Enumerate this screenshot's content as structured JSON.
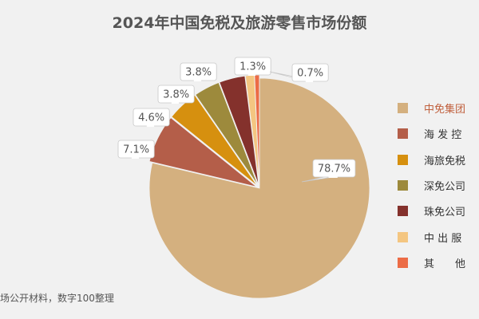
{
  "title": "2024年中国免税及旅游零售市场份额",
  "source": "场公开材料，数字100整理",
  "chart_data": {
    "type": "pie",
    "title": "2024年中国免税及旅游零售市场份额",
    "slices": [
      {
        "label": "中免集团",
        "value": 78.7,
        "value_label": "78.7%",
        "color": "#d4b07f",
        "highlight_label": true
      },
      {
        "label": "海 发 控",
        "value": 7.1,
        "value_label": "7.1%",
        "color": "#b45e49",
        "exploded": true
      },
      {
        "label": "海旅免税",
        "value": 4.6,
        "value_label": "4.6%",
        "color": "#d6900f",
        "exploded": true
      },
      {
        "label": "深免公司",
        "value": 3.8,
        "value_label": "3.8%",
        "color": "#9d8a3c",
        "exploded": true
      },
      {
        "label": "珠免公司",
        "value": 3.8,
        "value_label": "3.8%",
        "color": "#84312c",
        "exploded": true
      },
      {
        "label": "中 出 服",
        "value": 1.3,
        "value_label": "1.3%",
        "color": "#f4c681",
        "exploded": true
      },
      {
        "label": "其　　他",
        "value": 0.7,
        "value_label": "0.7%",
        "color": "#ec6c46",
        "exploded": true
      }
    ],
    "legend_position": "right"
  }
}
